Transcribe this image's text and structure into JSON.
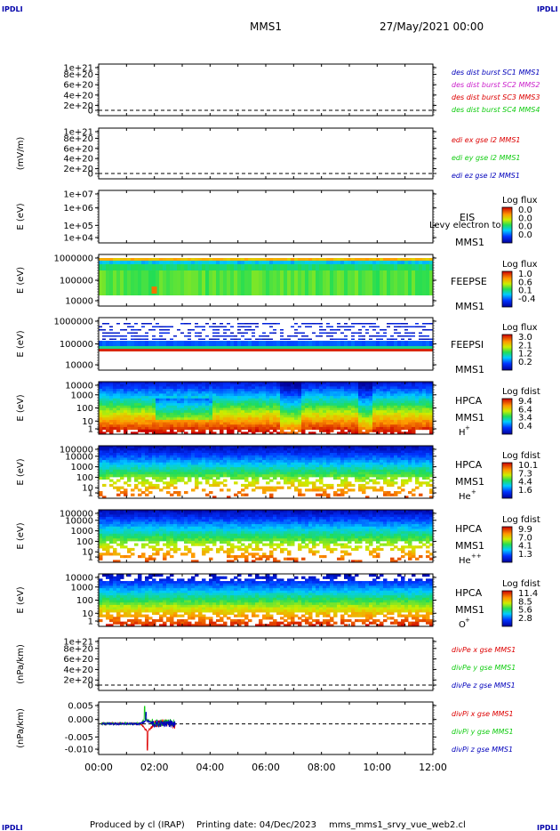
{
  "header": {
    "corner_left_top": "IPDLI",
    "corner_right_top": "IPDLI",
    "corner_left_bottom": "IPDLI",
    "corner_right_bottom": "IPDLI",
    "spacecraft": "MMS1",
    "datetime": "27/May/2021 00:00"
  },
  "footer": {
    "produced": "Produced by cl (IRAP)",
    "printing": "Printing date: 04/Dec/2023",
    "file": "mms_mms1_srvy_vue_web2.cl"
  },
  "colors": {
    "red": "#dd0000",
    "green": "#11cc11",
    "blue": "#0000bb",
    "magenta": "#cc22cc"
  },
  "chart_data": [
    {
      "type": "line",
      "id": "des",
      "ylabel": "",
      "yticks": [
        "1e+21",
        "8e+20",
        "6e+20",
        "4e+20",
        "2e+20",
        "0"
      ],
      "series": [
        {
          "name": "des dist burst SC1 MMS1",
          "color": "#0000bb",
          "values": []
        },
        {
          "name": "des dist burst SC2 MMS2",
          "color": "#cc22cc",
          "values": []
        },
        {
          "name": "des dist burst SC3 MMS3",
          "color": "#dd0000",
          "values": []
        },
        {
          "name": "des dist burst SC4 MMS4",
          "color": "#11cc11",
          "values": []
        }
      ]
    },
    {
      "type": "line",
      "id": "edi",
      "ylabel": "(mV/m)",
      "yticks": [
        "1e+21",
        "8e+20",
        "6e+20",
        "4e+20",
        "2e+20",
        "0"
      ],
      "series": [
        {
          "name": "edi ex gse l2 MMS1",
          "color": "#dd0000",
          "values": []
        },
        {
          "name": "edi ey gse l2 MMS1",
          "color": "#11cc11",
          "values": []
        },
        {
          "name": "edi ez gse l2 MMS1",
          "color": "#0000bb",
          "values": []
        }
      ]
    },
    {
      "type": "heatmap",
      "id": "eis",
      "ylabel": "E (eV)",
      "yticks": [
        "1e+07",
        "1e+06",
        "1e+05",
        "1e+04"
      ],
      "instrument": "EIS",
      "spacecraft": "MMS1",
      "overlap_text": "Levy electron to",
      "colorbar_title": "Log flux",
      "colorbar_ticks": [
        "0.0",
        "0.0",
        "0.0",
        "0.0"
      ],
      "fill": "empty"
    },
    {
      "type": "heatmap",
      "id": "feepse",
      "ylabel": "E (eV)",
      "yticks": [
        "1000000",
        "100000",
        "10000"
      ],
      "instrument": "FEEPSE",
      "spacecraft": "MMS1",
      "colorbar_title": "Log flux",
      "colorbar_ticks": [
        "1.0",
        "0.6",
        "0.1",
        "-0.4"
      ],
      "data_end_hour": 12
    },
    {
      "type": "heatmap",
      "id": "feepsi",
      "ylabel": "E (eV)",
      "yticks": [
        "1000000",
        "100000",
        "10000"
      ],
      "instrument": "FEEPSI",
      "spacecraft": "MMS1",
      "colorbar_title": "Log flux",
      "colorbar_ticks": [
        "3.0",
        "2.1",
        "1.2",
        "0.2"
      ],
      "data_end_hour": 12
    },
    {
      "type": "heatmap",
      "id": "hpca_h",
      "ylabel": "E (eV)",
      "yticks": [
        "10000",
        "1000",
        "100",
        "10",
        "1"
      ],
      "instrument": "HPCA",
      "spacecraft": "MMS1",
      "species": "H",
      "charge": "+",
      "colorbar_title": "Log fdist",
      "colorbar_ticks": [
        "9.4",
        "6.4",
        "3.4",
        "0.4"
      ],
      "data_end_hour": 12
    },
    {
      "type": "heatmap",
      "id": "hpca_he",
      "ylabel": "E (eV)",
      "yticks": [
        "100000",
        "10000",
        "1000",
        "100",
        "10",
        "1"
      ],
      "instrument": "HPCA",
      "spacecraft": "MMS1",
      "species": "He",
      "charge": "+",
      "colorbar_title": "Log fdist",
      "colorbar_ticks": [
        "10.1",
        "7.3",
        "4.4",
        "1.6"
      ],
      "data_end_hour": 12
    },
    {
      "type": "heatmap",
      "id": "hpca_hepp",
      "ylabel": "E (eV)",
      "yticks": [
        "100000",
        "10000",
        "1000",
        "100",
        "10",
        "1"
      ],
      "instrument": "HPCA",
      "spacecraft": "MMS1",
      "species": "He",
      "charge": "++",
      "colorbar_title": "Log fdist",
      "colorbar_ticks": [
        "9.9",
        "7.0",
        "4.1",
        "1.3"
      ],
      "data_end_hour": 12
    },
    {
      "type": "heatmap",
      "id": "hpca_o",
      "ylabel": "E (eV)",
      "yticks": [
        "10000",
        "1000",
        "100",
        "10",
        "1"
      ],
      "instrument": "HPCA",
      "spacecraft": "MMS1",
      "species": "O",
      "charge": "+",
      "colorbar_title": "Log fdist",
      "colorbar_ticks": [
        "11.4",
        "8.5",
        "5.6",
        "2.8"
      ],
      "data_end_hour": 12
    },
    {
      "type": "line",
      "id": "divpe",
      "ylabel": "(nPa/km)",
      "yticks": [
        "1e+21",
        "8e+20",
        "6e+20",
        "4e+20",
        "2e+20",
        "0"
      ],
      "series": [
        {
          "name": "divPe x gse MMS1",
          "color": "#dd0000",
          "values": []
        },
        {
          "name": "divPe y gse MMS1",
          "color": "#11cc11",
          "values": []
        },
        {
          "name": "divPe z gse MMS1",
          "color": "#0000bb",
          "values": []
        }
      ]
    },
    {
      "type": "line",
      "id": "divpi",
      "ylabel": "(nPa/km)",
      "yticks": [
        "0.005",
        "0.000",
        "-0.005",
        "-0.010"
      ],
      "ylim": [
        -0.0105,
        0.0075
      ],
      "series": [
        {
          "name": "divPi x gse MMS1",
          "color": "#dd0000",
          "x": [
            0.1,
            0.5,
            1.0,
            1.5,
            1.75,
            2.0,
            2.5,
            2.75
          ],
          "values": [
            0.0,
            0.0003,
            0.0001,
            0.0002,
            -0.009,
            0.0,
            0.001,
            -0.003
          ]
        },
        {
          "name": "divPi y gse MMS1",
          "color": "#11cc11",
          "x": [
            0.1,
            0.5,
            1.0,
            1.5,
            1.65,
            2.0,
            2.5,
            2.75
          ],
          "values": [
            0.0,
            0.0002,
            0.0001,
            0.0004,
            0.006,
            0.0005,
            0.002,
            0.001
          ]
        },
        {
          "name": "divPi z gse MMS1",
          "color": "#0000bb",
          "x": [
            0.1,
            0.5,
            1.0,
            1.5,
            1.7,
            2.0,
            2.5,
            2.75
          ],
          "values": [
            0.0,
            -0.0002,
            0.0,
            0.0001,
            0.004,
            -0.0004,
            0.001,
            -0.001
          ]
        }
      ]
    }
  ],
  "xaxis": {
    "ticks": [
      "00:00",
      "02:00",
      "04:00",
      "06:00",
      "08:00",
      "10:00",
      "12:00"
    ],
    "range_hours": [
      0,
      12
    ]
  }
}
